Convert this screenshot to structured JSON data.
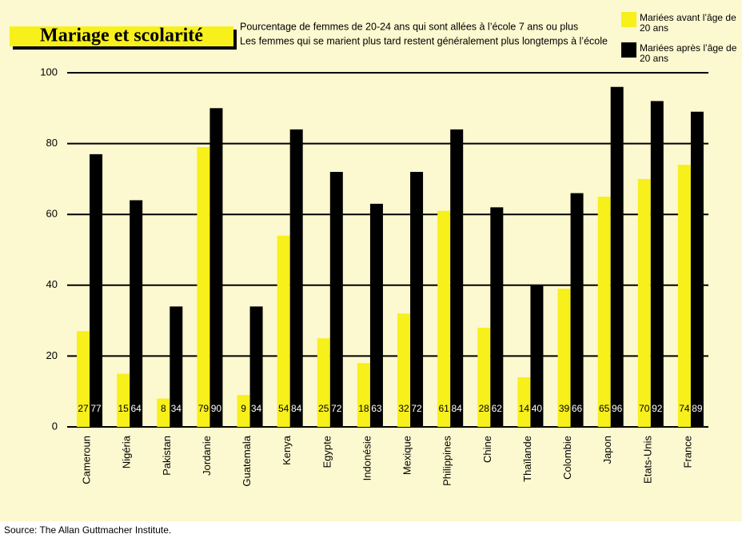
{
  "chart_data": {
    "type": "bar",
    "title": "Mariage et scolarité",
    "subtitle": [
      "Pourcentage de femmes de 20-24 ans qui sont allées à l’école 7 ans ou plus",
      "Les femmes qui se marient plus tard restent généralement plus longtemps à l’école"
    ],
    "categories": [
      "Cameroun",
      "Nigéria",
      "Pakistan",
      "Jordanie",
      "Guatemala",
      "Kenya",
      "Egypte",
      "Indonésie",
      "Mexique",
      "Philippines",
      "Chine",
      "Thaïlande",
      "Colombie",
      "Japon",
      "Etats-Unis",
      "France"
    ],
    "series": [
      {
        "name": "Mariées avant l’âge de 20 ans",
        "color": "#f7f01a",
        "label_color": "#000000",
        "values": [
          27,
          15,
          8,
          79,
          9,
          54,
          25,
          18,
          32,
          61,
          28,
          14,
          39,
          65,
          70,
          74
        ]
      },
      {
        "name": "Mariées après l’âge de 20 ans",
        "color": "#000000",
        "label_color": "#ffffff",
        "values": [
          77,
          64,
          34,
          90,
          34,
          84,
          72,
          63,
          72,
          84,
          62,
          40,
          66,
          96,
          92,
          89
        ]
      }
    ],
    "ylim": [
      0,
      100
    ],
    "yticks": [
      0,
      20,
      40,
      60,
      80,
      100
    ],
    "grid": true
  },
  "source": "Source: The Allan Guttmacher Institute."
}
